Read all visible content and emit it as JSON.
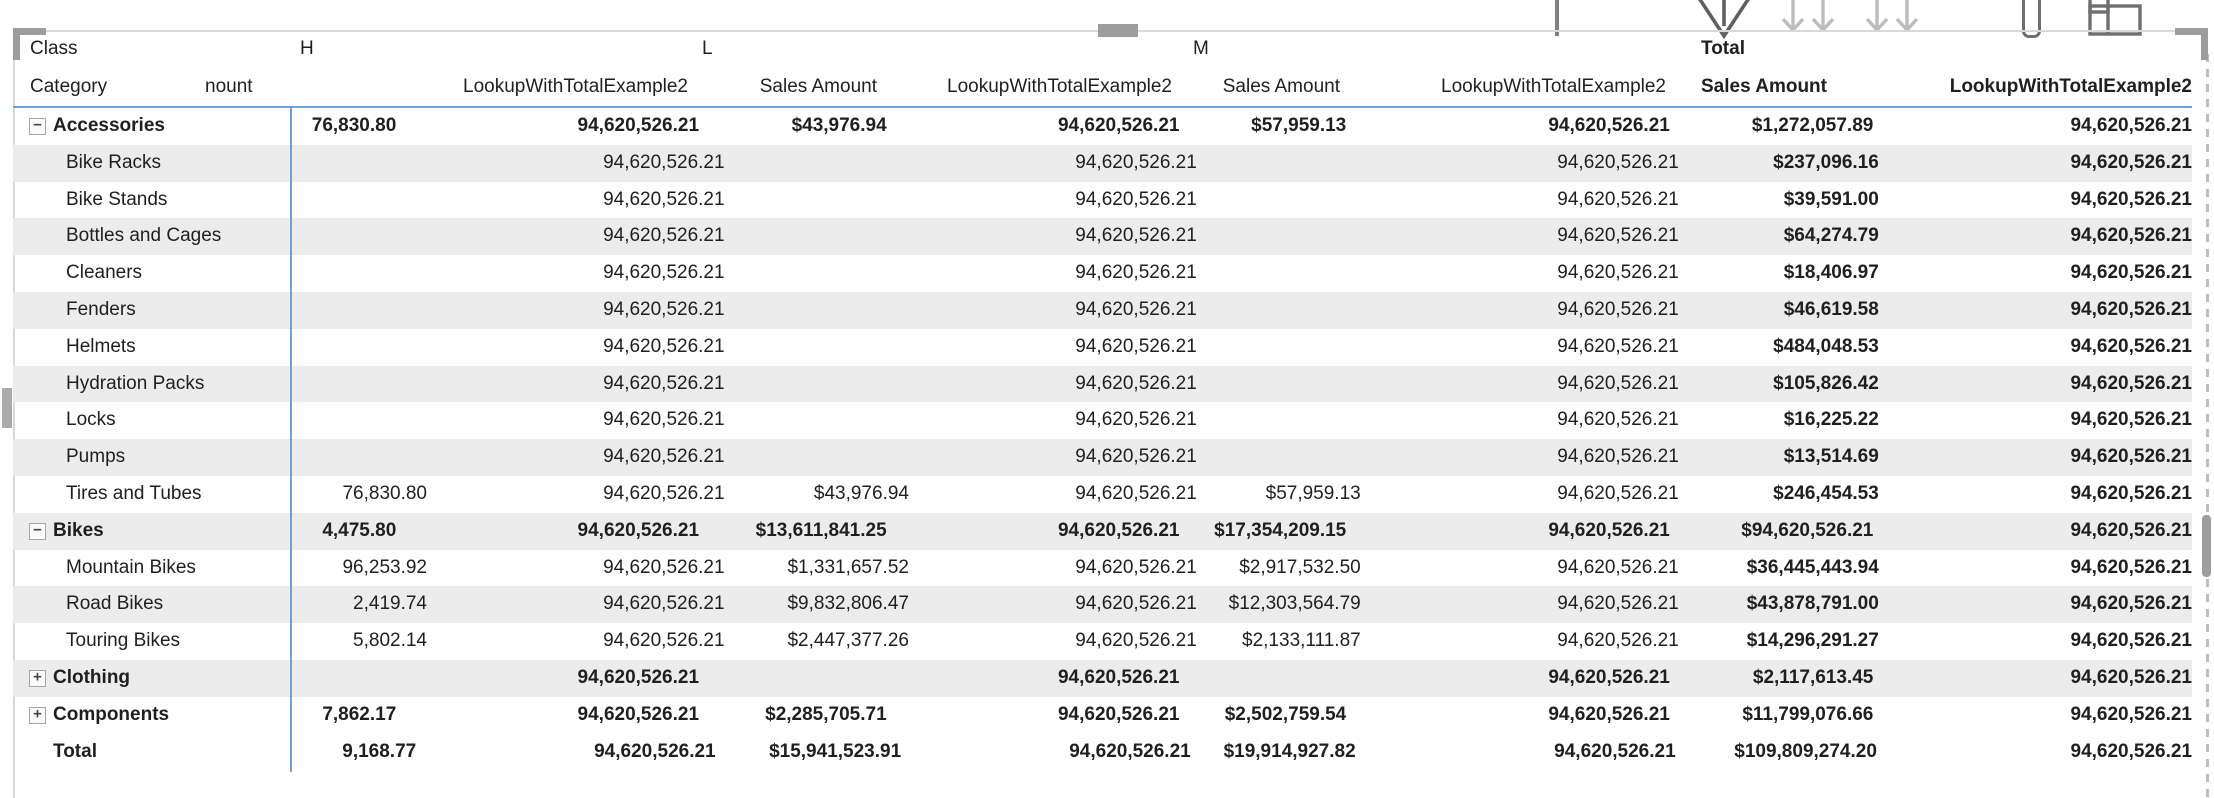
{
  "colors": {
    "accent_blue": "#6fa0d8",
    "stripe_gray": "#ececec",
    "text": "#1f1f1f",
    "frame_border": "#d9d9d9",
    "handle_gray": "#9d9d9d",
    "dash_gray": "#bdbdbd",
    "icon_dark": "#5f5f5f",
    "icon_light": "#bcbcbc"
  },
  "visual_header": {
    "icons": [
      {
        "name": "drill-up-icon"
      },
      {
        "name": "drill-down-icon"
      },
      {
        "name": "go-to-next-level-icon"
      },
      {
        "name": "expand-all-icon"
      },
      {
        "name": "pin-icon"
      },
      {
        "name": "layout-icon"
      }
    ]
  },
  "matrix": {
    "corner": {
      "row1": "Class",
      "row2": "Category"
    },
    "header_row1": [
      "Class",
      "H",
      "L",
      "M",
      "Total"
    ],
    "header_row2": {
      "corner": "Category",
      "cells": [
        "nount",
        "LookupWithTotalExample2",
        "Sales Amount",
        "LookupWithTotalExample2",
        "Sales Amount",
        "LookupWithTotalExample2",
        "Sales Amount",
        "LookupWithTotalExample2"
      ]
    },
    "toggle_glyphs": {
      "minus": "−",
      "plus": "+"
    },
    "rows": [
      {
        "label": "Accessories",
        "level": "subtotal",
        "toggle": "minus",
        "values": [
          "76,830.80",
          "94,620,526.21",
          "$43,976.94",
          "94,620,526.21",
          "$57,959.13",
          "94,620,526.21",
          "$1,272,057.89",
          "94,620,526.21"
        ]
      },
      {
        "label": "Bike Racks",
        "level": "child",
        "toggle": "none",
        "values": [
          "",
          "94,620,526.21",
          "",
          "94,620,526.21",
          "",
          "94,620,526.21",
          "$237,096.16",
          "94,620,526.21"
        ]
      },
      {
        "label": "Bike Stands",
        "level": "child",
        "toggle": "none",
        "values": [
          "",
          "94,620,526.21",
          "",
          "94,620,526.21",
          "",
          "94,620,526.21",
          "$39,591.00",
          "94,620,526.21"
        ]
      },
      {
        "label": "Bottles and Cages",
        "level": "child",
        "toggle": "none",
        "values": [
          "",
          "94,620,526.21",
          "",
          "94,620,526.21",
          "",
          "94,620,526.21",
          "$64,274.79",
          "94,620,526.21"
        ]
      },
      {
        "label": "Cleaners",
        "level": "child",
        "toggle": "none",
        "values": [
          "",
          "94,620,526.21",
          "",
          "94,620,526.21",
          "",
          "94,620,526.21",
          "$18,406.97",
          "94,620,526.21"
        ]
      },
      {
        "label": "Fenders",
        "level": "child",
        "toggle": "none",
        "values": [
          "",
          "94,620,526.21",
          "",
          "94,620,526.21",
          "",
          "94,620,526.21",
          "$46,619.58",
          "94,620,526.21"
        ]
      },
      {
        "label": "Helmets",
        "level": "child",
        "toggle": "none",
        "values": [
          "",
          "94,620,526.21",
          "",
          "94,620,526.21",
          "",
          "94,620,526.21",
          "$484,048.53",
          "94,620,526.21"
        ]
      },
      {
        "label": "Hydration Packs",
        "level": "child",
        "toggle": "none",
        "values": [
          "",
          "94,620,526.21",
          "",
          "94,620,526.21",
          "",
          "94,620,526.21",
          "$105,826.42",
          "94,620,526.21"
        ]
      },
      {
        "label": "Locks",
        "level": "child",
        "toggle": "none",
        "values": [
          "",
          "94,620,526.21",
          "",
          "94,620,526.21",
          "",
          "94,620,526.21",
          "$16,225.22",
          "94,620,526.21"
        ]
      },
      {
        "label": "Pumps",
        "level": "child",
        "toggle": "none",
        "values": [
          "",
          "94,620,526.21",
          "",
          "94,620,526.21",
          "",
          "94,620,526.21",
          "$13,514.69",
          "94,620,526.21"
        ]
      },
      {
        "label": "Tires and Tubes",
        "level": "child",
        "toggle": "none",
        "values": [
          "76,830.80",
          "94,620,526.21",
          "$43,976.94",
          "94,620,526.21",
          "$57,959.13",
          "94,620,526.21",
          "$246,454.53",
          "94,620,526.21"
        ]
      },
      {
        "label": "Bikes",
        "level": "subtotal",
        "toggle": "minus",
        "values": [
          "4,475.80",
          "94,620,526.21",
          "$13,611,841.25",
          "94,620,526.21",
          "$17,354,209.15",
          "94,620,526.21",
          "$94,620,526.21",
          "94,620,526.21"
        ]
      },
      {
        "label": "Mountain Bikes",
        "level": "child",
        "toggle": "none",
        "values": [
          "96,253.92",
          "94,620,526.21",
          "$1,331,657.52",
          "94,620,526.21",
          "$2,917,532.50",
          "94,620,526.21",
          "$36,445,443.94",
          "94,620,526.21"
        ]
      },
      {
        "label": "Road Bikes",
        "level": "child",
        "toggle": "none",
        "values": [
          "2,419.74",
          "94,620,526.21",
          "$9,832,806.47",
          "94,620,526.21",
          "$12,303,564.79",
          "94,620,526.21",
          "$43,878,791.00",
          "94,620,526.21"
        ]
      },
      {
        "label": "Touring Bikes",
        "level": "child",
        "toggle": "none",
        "values": [
          "5,802.14",
          "94,620,526.21",
          "$2,447,377.26",
          "94,620,526.21",
          "$2,133,111.87",
          "94,620,526.21",
          "$14,296,291.27",
          "94,620,526.21"
        ]
      },
      {
        "label": "Clothing",
        "level": "subtotal",
        "toggle": "plus",
        "values": [
          "",
          "94,620,526.21",
          "",
          "94,620,526.21",
          "",
          "94,620,526.21",
          "$2,117,613.45",
          "94,620,526.21"
        ]
      },
      {
        "label": "Components",
        "level": "subtotal",
        "toggle": "plus",
        "values": [
          "7,862.17",
          "94,620,526.21",
          "$2,285,705.71",
          "94,620,526.21",
          "$2,502,759.54",
          "94,620,526.21",
          "$11,799,076.66",
          "94,620,526.21"
        ]
      },
      {
        "label": "Total",
        "level": "grand",
        "toggle": "none",
        "values": [
          "9,168.77",
          "94,620,526.21",
          "$15,941,523.91",
          "94,620,526.21",
          "$19,914,927.82",
          "94,620,526.21",
          "$109,809,274.20",
          "94,620,526.21"
        ]
      }
    ]
  }
}
